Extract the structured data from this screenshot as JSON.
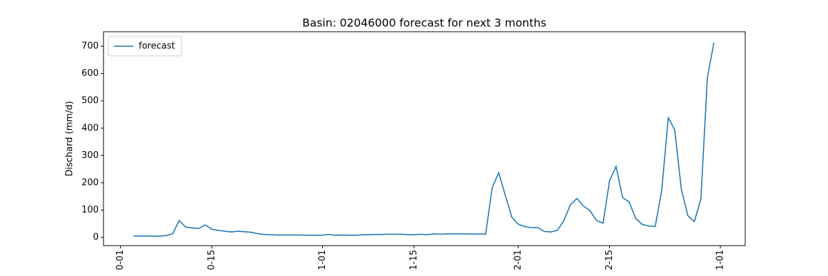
{
  "chart_data": {
    "type": "line",
    "title": "Basin: 02046000 forecast for next 3 months",
    "y_label": "Dischard (mm/d)",
    "x": [
      2,
      3,
      4,
      5,
      6,
      7,
      8,
      9,
      10,
      11,
      12,
      13,
      14,
      15,
      16,
      17,
      18,
      19,
      20,
      21,
      22,
      23,
      24,
      25,
      26,
      27,
      28,
      29,
      30,
      31,
      32,
      33,
      34,
      35,
      36,
      37,
      38,
      39,
      40,
      41,
      42,
      43,
      44,
      45,
      46,
      47,
      48,
      49,
      50,
      51,
      52,
      53,
      54,
      55,
      56,
      57,
      58,
      59,
      60,
      61,
      62,
      63,
      64,
      65,
      66,
      67,
      68,
      69,
      70,
      71,
      72,
      73,
      74,
      75,
      76,
      77,
      78,
      79,
      80,
      81,
      82,
      83,
      84,
      85,
      86,
      87,
      88,
      89,
      90,
      91
    ],
    "series": [
      {
        "name": "forecast",
        "color": "#1f77b4",
        "values": [
          5,
          5,
          5,
          5,
          4.5,
          7,
          13,
          62,
          38,
          35,
          33,
          46,
          30,
          26,
          23,
          20,
          23,
          21,
          19,
          14,
          11,
          10,
          9,
          9,
          9,
          9,
          8.5,
          8,
          8,
          8.5,
          11,
          8,
          9,
          8,
          8,
          9.5,
          10,
          11,
          11,
          12,
          11.5,
          12,
          10.5,
          9.5,
          12,
          10,
          13,
          12,
          13,
          13,
          13,
          13,
          12.5,
          12.5,
          12,
          182,
          237,
          155,
          75,
          48,
          40,
          36,
          36,
          22,
          20,
          26,
          62,
          120,
          143,
          115,
          98,
          62,
          52,
          207,
          260,
          146,
          130,
          70,
          48,
          42,
          40,
          172,
          438,
          393,
          178,
          80,
          58,
          140,
          585,
          713
        ]
      }
    ],
    "xlim": [
      -2.6,
      95.8
    ],
    "xticks": [
      {
        "value": 0,
        "label": "0-01"
      },
      {
        "value": 14,
        "label": "0-15"
      },
      {
        "value": 31,
        "label": "1-01"
      },
      {
        "value": 45,
        "label": "1-15"
      },
      {
        "value": 61,
        "label": "2-01"
      },
      {
        "value": 75,
        "label": "2-15"
      },
      {
        "value": 92,
        "label": "1-01"
      }
    ],
    "ylim": [
      -30,
      753
    ],
    "yticks": [
      0,
      100,
      200,
      300,
      400,
      500,
      600,
      700
    ],
    "legend": "upper left"
  }
}
